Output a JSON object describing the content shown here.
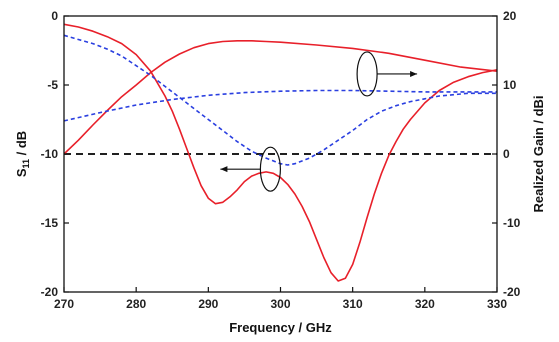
{
  "chart_data": {
    "type": "line",
    "xlabel": "Frequency / GHz",
    "ylabel_left_main": "S",
    "ylabel_left_sub": "11",
    "ylabel_left_unit": " / dB",
    "ylabel_right": "Realized Gain / dBi",
    "xlim": [
      270,
      330
    ],
    "ylim_left": [
      -20,
      0
    ],
    "ylim_right": [
      -20,
      20
    ],
    "x_ticks": [
      270,
      280,
      290,
      300,
      310,
      320,
      330
    ],
    "y_left_ticks": [
      0,
      -5,
      -10,
      -15,
      -20
    ],
    "y_right_ticks": [
      20,
      10,
      0,
      -10,
      -20
    ],
    "grid": false,
    "reference_line": {
      "axis": "left",
      "value": -10,
      "style": "dashed",
      "color": "#000000"
    },
    "series": [
      {
        "axis": "left",
        "color": "#e8202a",
        "style": "solid",
        "x": [
          270,
          272,
          274,
          276,
          278,
          280,
          282,
          284,
          285,
          286,
          287,
          288,
          289,
          290,
          291,
          292,
          293,
          294,
          295,
          296,
          297,
          298,
          299,
          300,
          301,
          302,
          303,
          304,
          305,
          306,
          307,
          308,
          309,
          310,
          311,
          312,
          313,
          314,
          315,
          316,
          317,
          318,
          320,
          322,
          324,
          326,
          328,
          330
        ],
        "y": [
          -0.6,
          -0.8,
          -1.1,
          -1.5,
          -2.0,
          -2.8,
          -4.0,
          -5.8,
          -6.9,
          -8.2,
          -9.6,
          -11.0,
          -12.3,
          -13.2,
          -13.6,
          -13.5,
          -13.1,
          -12.6,
          -12.0,
          -11.6,
          -11.4,
          -11.3,
          -11.4,
          -11.7,
          -12.2,
          -12.9,
          -13.8,
          -14.9,
          -16.2,
          -17.5,
          -18.6,
          -19.2,
          -19.0,
          -18.0,
          -16.4,
          -14.6,
          -12.9,
          -11.4,
          -10.1,
          -9.1,
          -8.2,
          -7.5,
          -6.3,
          -5.4,
          -4.8,
          -4.4,
          -4.1,
          -3.9
        ]
      },
      {
        "axis": "right",
        "color": "#e8202a",
        "style": "solid",
        "x": [
          270,
          272,
          274,
          276,
          278,
          280,
          282,
          284,
          286,
          288,
          290,
          292,
          294,
          296,
          298,
          300,
          305,
          310,
          315,
          320,
          325,
          330
        ],
        "y": [
          0.0,
          2.0,
          4.2,
          6.3,
          8.3,
          10.0,
          11.8,
          13.3,
          14.5,
          15.4,
          16.0,
          16.3,
          16.4,
          16.4,
          16.3,
          16.2,
          15.8,
          15.3,
          14.6,
          13.6,
          12.6,
          12.0
        ]
      },
      {
        "axis": "left",
        "color": "#2a3fe0",
        "style": "dashed",
        "x": [
          270,
          272,
          274,
          276,
          278,
          280,
          282,
          284,
          286,
          288,
          290,
          292,
          294,
          296,
          298,
          300,
          301,
          302,
          304,
          306,
          308,
          310,
          312,
          314,
          316,
          318,
          320,
          322,
          324,
          326,
          328,
          330
        ],
        "y": [
          -1.4,
          -1.7,
          -2.0,
          -2.4,
          -2.9,
          -3.6,
          -4.3,
          -5.1,
          -5.9,
          -6.7,
          -7.5,
          -8.3,
          -9.1,
          -9.8,
          -10.3,
          -10.7,
          -10.8,
          -10.7,
          -10.3,
          -9.7,
          -9.0,
          -8.3,
          -7.5,
          -6.9,
          -6.5,
          -6.2,
          -6.0,
          -5.8,
          -5.7,
          -5.6,
          -5.6,
          -5.6
        ]
      },
      {
        "axis": "right",
        "color": "#2a3fe0",
        "style": "dashed",
        "x": [
          270,
          275,
          280,
          285,
          290,
          295,
          300,
          305,
          310,
          315,
          320,
          325,
          330
        ],
        "y": [
          4.8,
          6.0,
          7.1,
          7.9,
          8.5,
          8.9,
          9.1,
          9.2,
          9.2,
          9.1,
          9.0,
          9.0,
          9.0
        ]
      }
    ],
    "annotations": [
      {
        "type": "ellipse",
        "points_to": "right",
        "cx": 312,
        "cy_left": -4.2
      },
      {
        "type": "ellipse",
        "points_to": "left",
        "cx": 298.6,
        "cy_left": -11.1
      }
    ]
  }
}
